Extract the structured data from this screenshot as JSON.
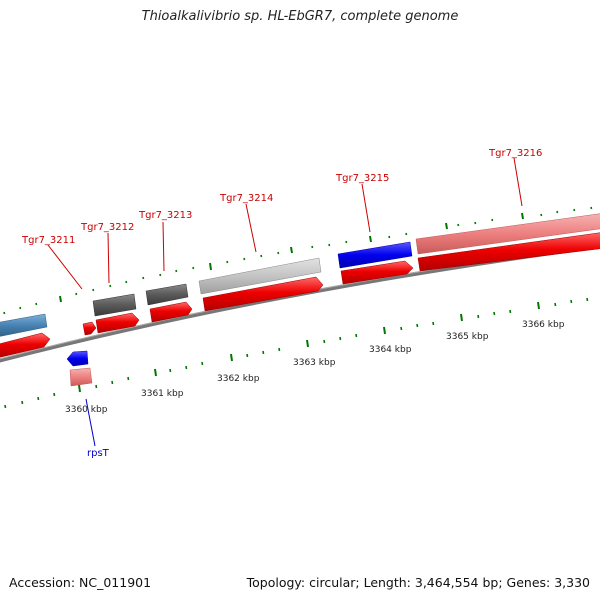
{
  "title": "Thioalkalivibrio sp. HL-EbGR7, complete genome",
  "accession": "Accession: NC_011901",
  "summary": "Topology: circular; Length: 3,464,554 bp; Genes: 3,330",
  "tick_labels": [
    "3360 kbp",
    "3361 kbp",
    "3362 kbp",
    "3363 kbp",
    "3364 kbp",
    "3365 kbp",
    "3366 kbp"
  ],
  "gene_labels": [
    "Tgr7_3211",
    "Tgr7_3212",
    "Tgr7_3213",
    "Tgr7_3214",
    "Tgr7_3215",
    "Tgr7_3216",
    "rpsT"
  ],
  "colors": {
    "cds_forward": "#ee0000",
    "cds_reverse_blue": "#0000ee",
    "pink": "#ee7777",
    "steel_blue": "#4682b4",
    "dark_gray": "#555555",
    "light_gray": "#c0c0c0",
    "backbone": "#777777",
    "tick": "#007700",
    "label_red": "#cc0000",
    "label_blue": "#0000cc"
  }
}
